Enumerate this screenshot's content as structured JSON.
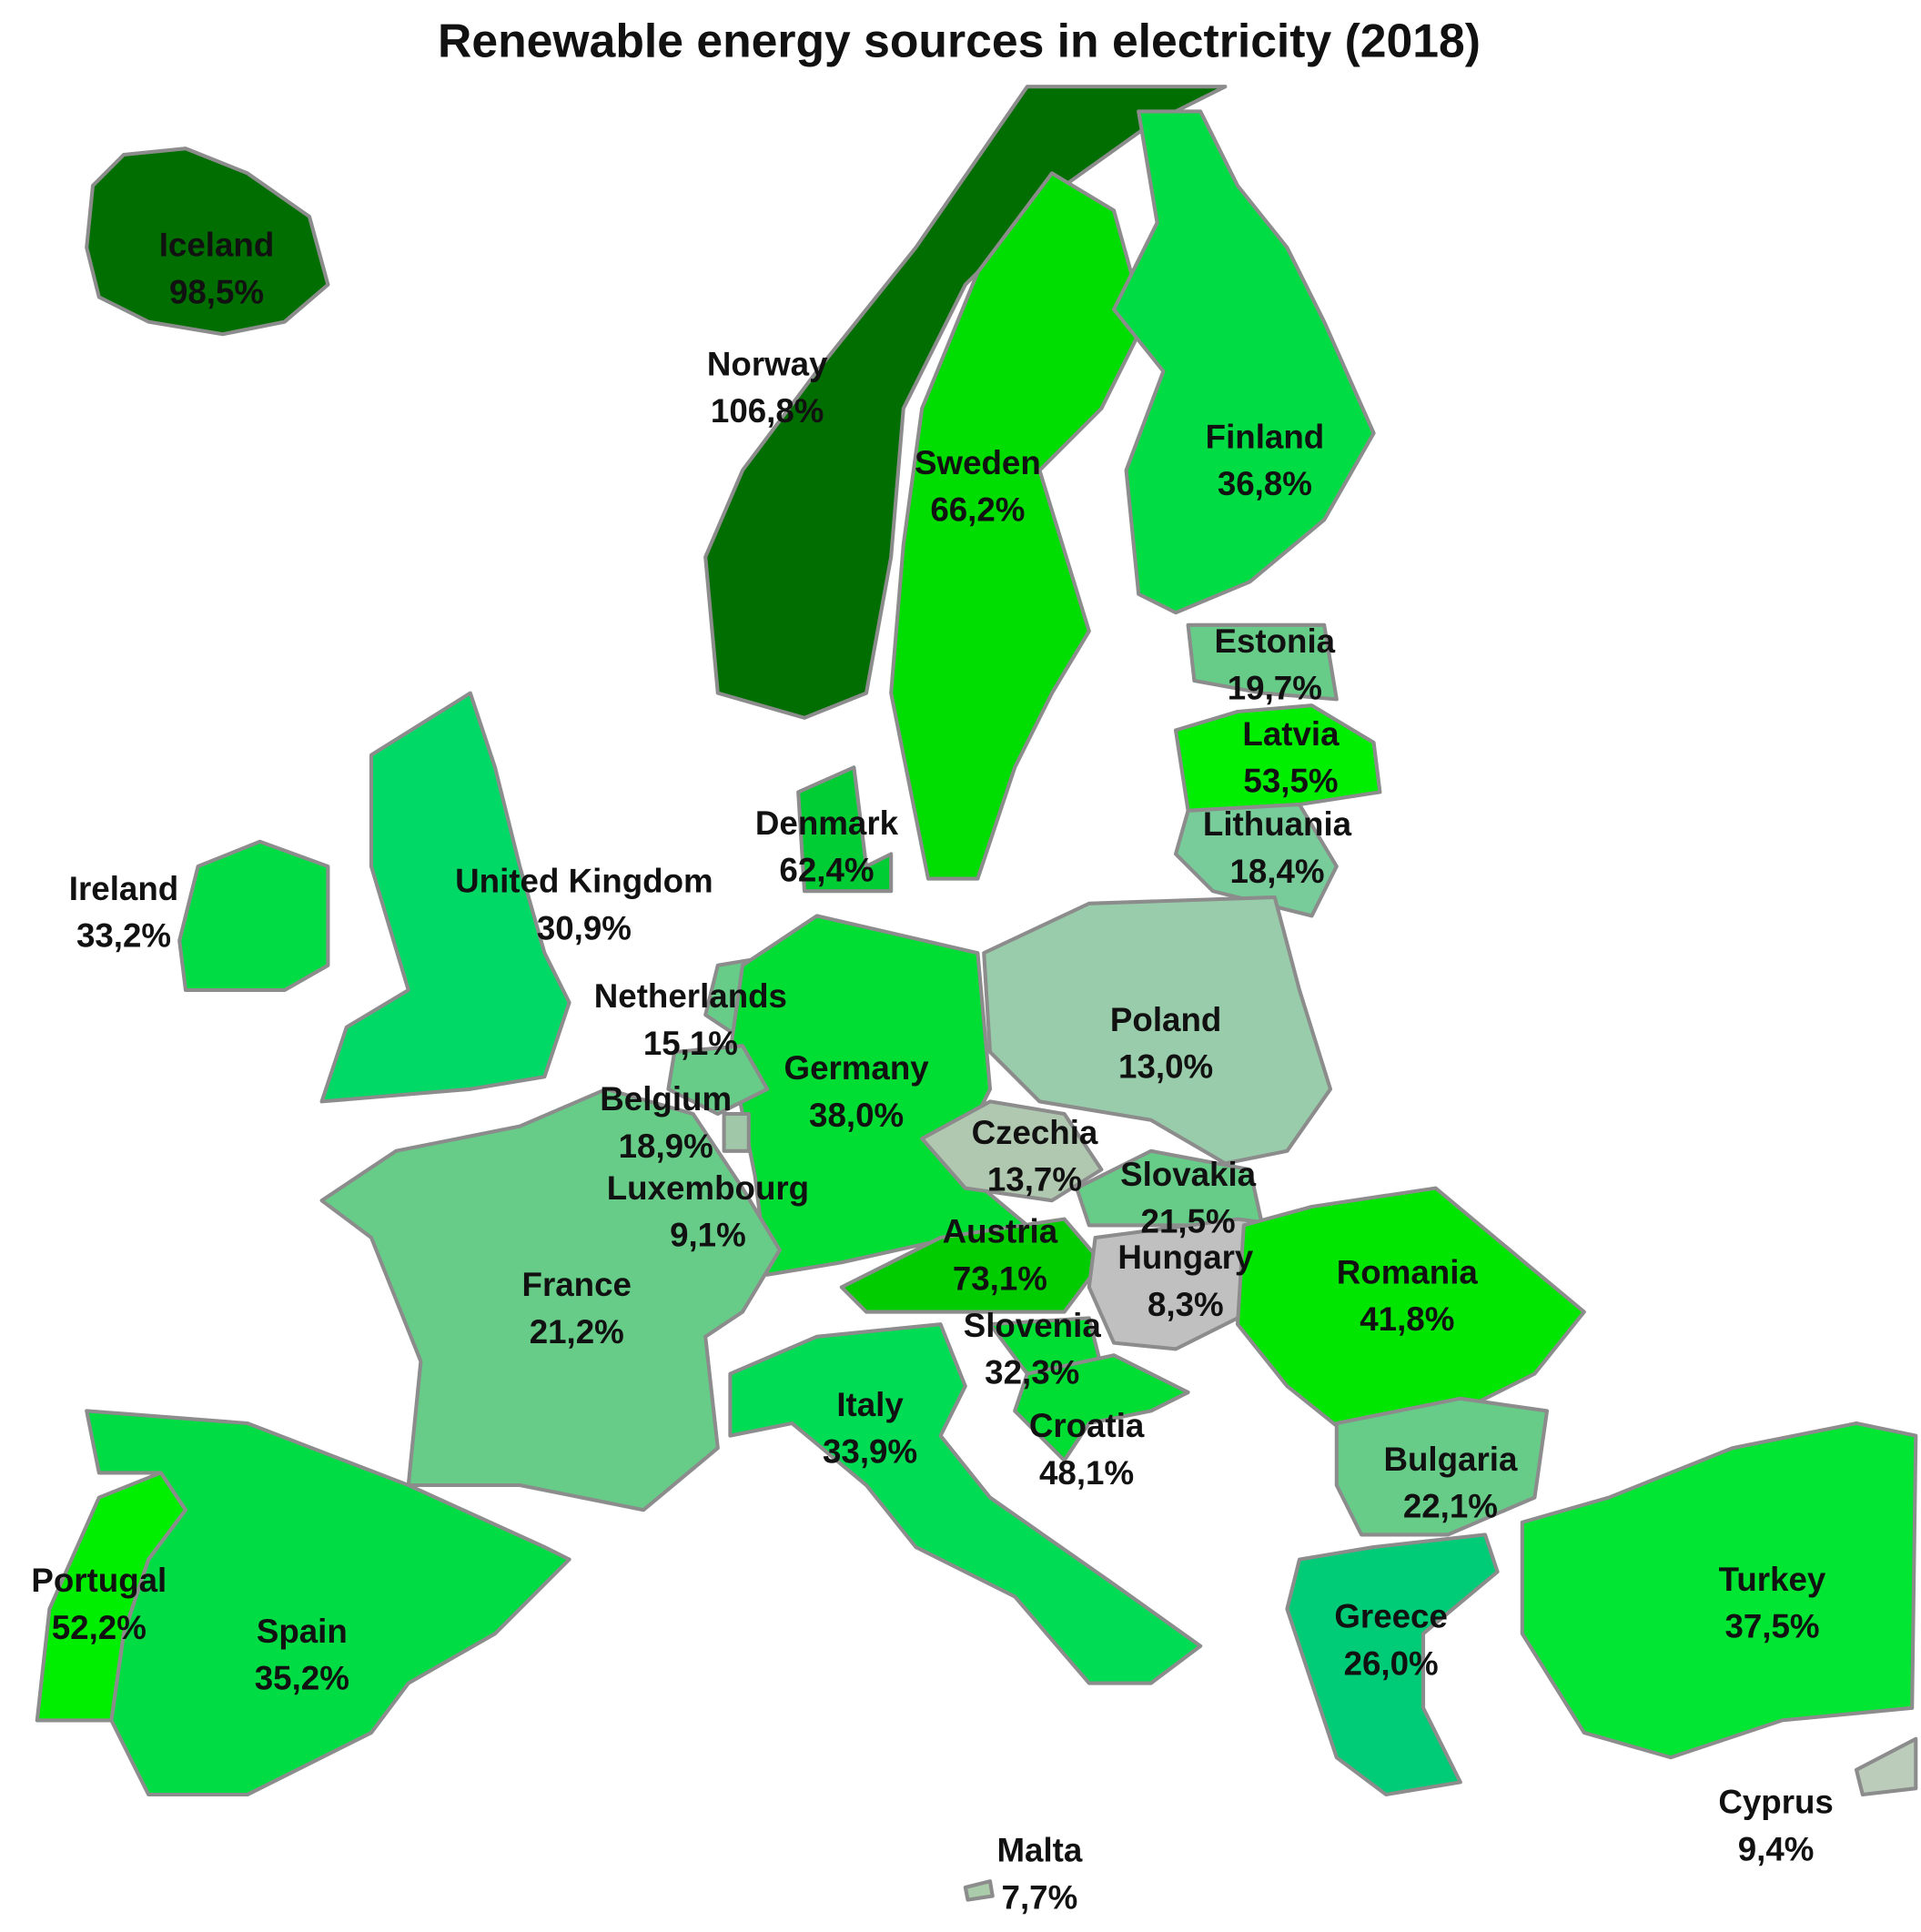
{
  "title": "Renewable energy sources in electricity (2018)",
  "countries": [
    {
      "name": "Iceland",
      "value": 98.5,
      "value_label": "98,5%",
      "color": "#006e00"
    },
    {
      "name": "Norway",
      "value": 106.8,
      "value_label": "106,8%",
      "color": "#006e00"
    },
    {
      "name": "Sweden",
      "value": 66.2,
      "value_label": "66,2%",
      "color": "#00dd00"
    },
    {
      "name": "Finland",
      "value": 36.8,
      "value_label": "36,8%",
      "color": "#00dd44"
    },
    {
      "name": "Estonia",
      "value": 19.7,
      "value_label": "19,7%",
      "color": "#66cc88"
    },
    {
      "name": "Latvia",
      "value": 53.5,
      "value_label": "53,5%",
      "color": "#00ee00"
    },
    {
      "name": "Lithuania",
      "value": 18.4,
      "value_label": "18,4%",
      "color": "#77cc99"
    },
    {
      "name": "Denmark",
      "value": 62.4,
      "value_label": "62,4%",
      "color": "#00cc33"
    },
    {
      "name": "Ireland",
      "value": 33.2,
      "value_label": "33,2%",
      "color": "#00dd44"
    },
    {
      "name": "United Kingdom",
      "value": 30.9,
      "value_label": "30,9%",
      "color": "#00d966"
    },
    {
      "name": "Netherlands",
      "value": 15.1,
      "value_label": "15,1%",
      "color": "#66cc88"
    },
    {
      "name": "Poland",
      "value": 13.0,
      "value_label": "13,0%",
      "color": "#99ccaa"
    },
    {
      "name": "Germany",
      "value": 38.0,
      "value_label": "38,0%",
      "color": "#00dd33"
    },
    {
      "name": "Belgium",
      "value": 18.9,
      "value_label": "18,9%",
      "color": "#66cc88"
    },
    {
      "name": "Czechia",
      "value": 13.7,
      "value_label": "13,7%",
      "color": "#b0c8b0"
    },
    {
      "name": "Slovakia",
      "value": 21.5,
      "value_label": "21,5%",
      "color": "#66cc88"
    },
    {
      "name": "Luxembourg",
      "value": 9.1,
      "value_label": "9,1%",
      "color": "#a0c8a8"
    },
    {
      "name": "Austria",
      "value": 73.1,
      "value_label": "73,1%",
      "color": "#00cc00"
    },
    {
      "name": "Hungary",
      "value": 8.3,
      "value_label": "8,3%",
      "color": "#c0c0c0"
    },
    {
      "name": "Romania",
      "value": 41.8,
      "value_label": "41,8%",
      "color": "#00e600"
    },
    {
      "name": "France",
      "value": 21.2,
      "value_label": "21,2%",
      "color": "#66cc88"
    },
    {
      "name": "Slovenia",
      "value": 32.3,
      "value_label": "32,3%",
      "color": "#00dd33"
    },
    {
      "name": "Italy",
      "value": 33.9,
      "value_label": "33,9%",
      "color": "#00dd55"
    },
    {
      "name": "Croatia",
      "value": 48.1,
      "value_label": "48,1%",
      "color": "#00dd33"
    },
    {
      "name": "Bulgaria",
      "value": 22.1,
      "value_label": "22,1%",
      "color": "#66cc88"
    },
    {
      "name": "Portugal",
      "value": 52.2,
      "value_label": "52,2%",
      "color": "#00ee00"
    },
    {
      "name": "Spain",
      "value": 35.2,
      "value_label": "35,2%",
      "color": "#00dd44"
    },
    {
      "name": "Greece",
      "value": 26.0,
      "value_label": "26,0%",
      "color": "#00cc77"
    },
    {
      "name": "Turkey",
      "value": 37.5,
      "value_label": "37,5%",
      "color": "#00e633"
    },
    {
      "name": "Cyprus",
      "value": 9.4,
      "value_label": "9,4%",
      "color": "#bbccbb"
    },
    {
      "name": "Malta",
      "value": 7.7,
      "value_label": "7,7%",
      "color": "#aaccaa"
    }
  ]
}
